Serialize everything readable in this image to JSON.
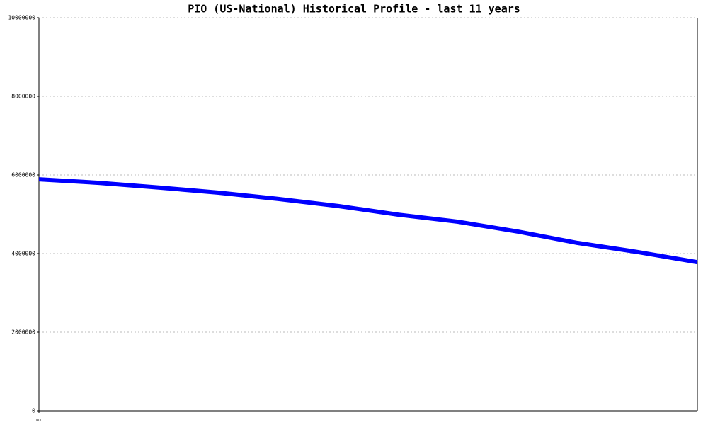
{
  "chart_data": {
    "type": "line",
    "title": "PIO (US-National) Historical Profile - last 11 years",
    "categories": [
      "0",
      null,
      null,
      null,
      null,
      null,
      null,
      null,
      null,
      null,
      null,
      null
    ],
    "series": [
      {
        "color": "#0000ff",
        "values": [
          5890000,
          5800000,
          5680000,
          5550000,
          5390000,
          5210000,
          4990000,
          4810000,
          4560000,
          4270000,
          4040000,
          3780000
        ]
      }
    ],
    "ylim": [
      0,
      10000000
    ],
    "yticks": [
      0,
      2000000,
      4000000,
      6000000,
      8000000,
      10000000
    ],
    "grid": true
  }
}
